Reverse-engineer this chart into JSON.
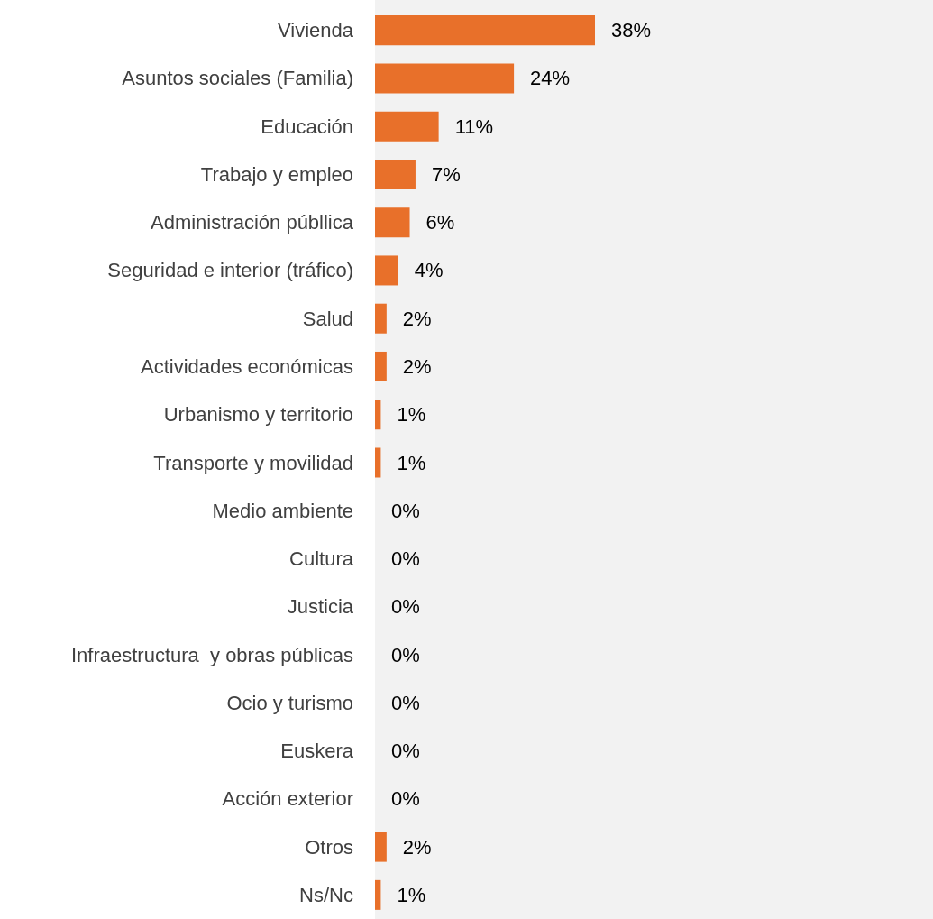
{
  "chart_data": {
    "type": "bar",
    "orientation": "horizontal",
    "categories": [
      "Vivienda",
      "Asuntos sociales (Familia)",
      "Educación",
      "Trabajo y empleo",
      "Administración públlica",
      "Seguridad e interior (tráfico)",
      "Salud",
      "Actividades económicas",
      "Urbanismo y territorio",
      "Transporte y movilidad",
      "Medio ambiente",
      "Cultura",
      "Justicia",
      "Infraestructura  y obras públicas",
      "Ocio y turismo",
      "Euskera",
      "Acción exterior",
      "Otros",
      "Ns/Nc"
    ],
    "values": [
      38,
      24,
      11,
      7,
      6,
      4,
      2,
      2,
      1,
      1,
      0,
      0,
      0,
      0,
      0,
      0,
      0,
      2,
      1
    ],
    "value_labels": [
      "38%",
      "24%",
      "11%",
      "7%",
      "6%",
      "4%",
      "2%",
      "2%",
      "1%",
      "1%",
      "0%",
      "0%",
      "0%",
      "0%",
      "0%",
      "0%",
      "0%",
      "2%",
      "1%"
    ],
    "color": "#e8702a"
  }
}
